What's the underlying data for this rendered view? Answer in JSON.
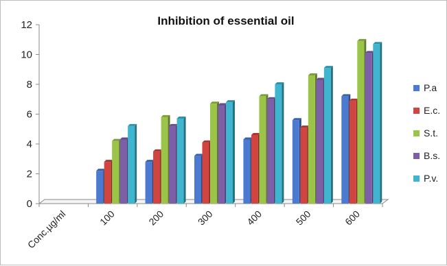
{
  "chart_data": {
    "type": "bar",
    "title": "Inhibition of essential oil",
    "xlabel": "",
    "ylabel": "",
    "categories": [
      "Conc.µg/ml",
      "100",
      "200",
      "300",
      "400",
      "500",
      "600"
    ],
    "ylim": [
      0,
      12
    ],
    "yticks": [
      "0",
      "2",
      "4",
      "6",
      "8",
      "10",
      "12"
    ],
    "grid": false,
    "legend_position": "right",
    "series": [
      {
        "name": "P.a",
        "color": "#4a7bd0",
        "values": [
          null,
          2.2,
          2.8,
          3.2,
          4.3,
          5.6,
          7.2
        ]
      },
      {
        "name": "E.c.",
        "color": "#d0453f",
        "values": [
          null,
          2.8,
          3.5,
          4.1,
          4.6,
          5.1,
          6.9
        ]
      },
      {
        "name": "S.t.",
        "color": "#9bc448",
        "values": [
          null,
          4.2,
          5.8,
          6.7,
          7.2,
          8.6,
          10.9
        ]
      },
      {
        "name": "B.s.",
        "color": "#7d5fa8",
        "values": [
          null,
          4.3,
          5.2,
          6.6,
          7.0,
          8.3,
          10.1
        ]
      },
      {
        "name": "P.v.",
        "color": "#3fb5cf",
        "values": [
          null,
          5.2,
          5.7,
          6.8,
          8.0,
          9.1,
          10.7
        ]
      }
    ]
  }
}
